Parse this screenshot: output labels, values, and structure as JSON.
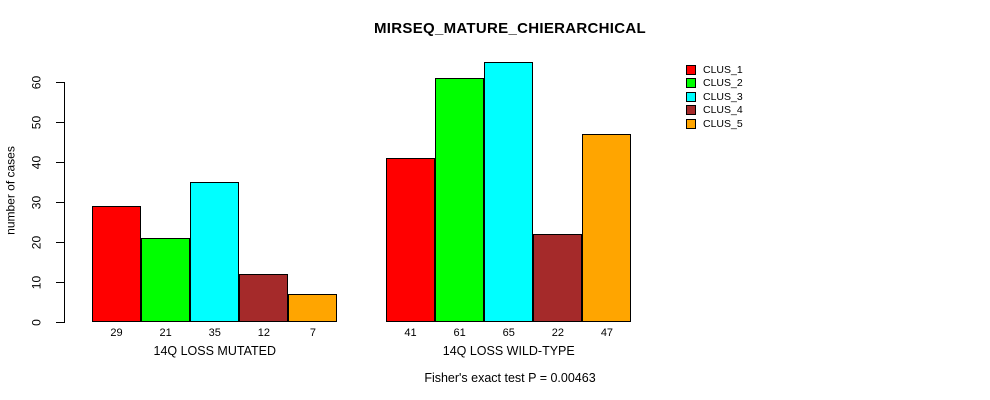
{
  "chart_data": {
    "type": "bar",
    "title": "MIRSEQ_MATURE_CHIERARCHICAL",
    "ylabel": "number of cases",
    "ylim": [
      0,
      65
    ],
    "yticks": [
      0,
      10,
      20,
      30,
      40,
      50,
      60
    ],
    "grid": false,
    "legend_position": "right",
    "bar_value_labels_shown": true,
    "categories": [
      "14Q LOSS MUTATED",
      "14Q LOSS WILD-TYPE"
    ],
    "groups": [
      {
        "label": "14Q LOSS MUTATED",
        "values": [
          29,
          21,
          35,
          12,
          7
        ]
      },
      {
        "label": "14Q LOSS WILD-TYPE",
        "values": [
          41,
          61,
          65,
          22,
          47
        ]
      }
    ],
    "series": [
      {
        "name": "CLUS_1",
        "color": "#FF0000"
      },
      {
        "name": "CLUS_2",
        "color": "#00FF00"
      },
      {
        "name": "CLUS_3",
        "color": "#00FFFF"
      },
      {
        "name": "CLUS_4",
        "color": "#A52A2A"
      },
      {
        "name": "CLUS_5",
        "color": "#FFA500"
      }
    ],
    "caption": "Fisher's exact test P = 0.00463"
  }
}
